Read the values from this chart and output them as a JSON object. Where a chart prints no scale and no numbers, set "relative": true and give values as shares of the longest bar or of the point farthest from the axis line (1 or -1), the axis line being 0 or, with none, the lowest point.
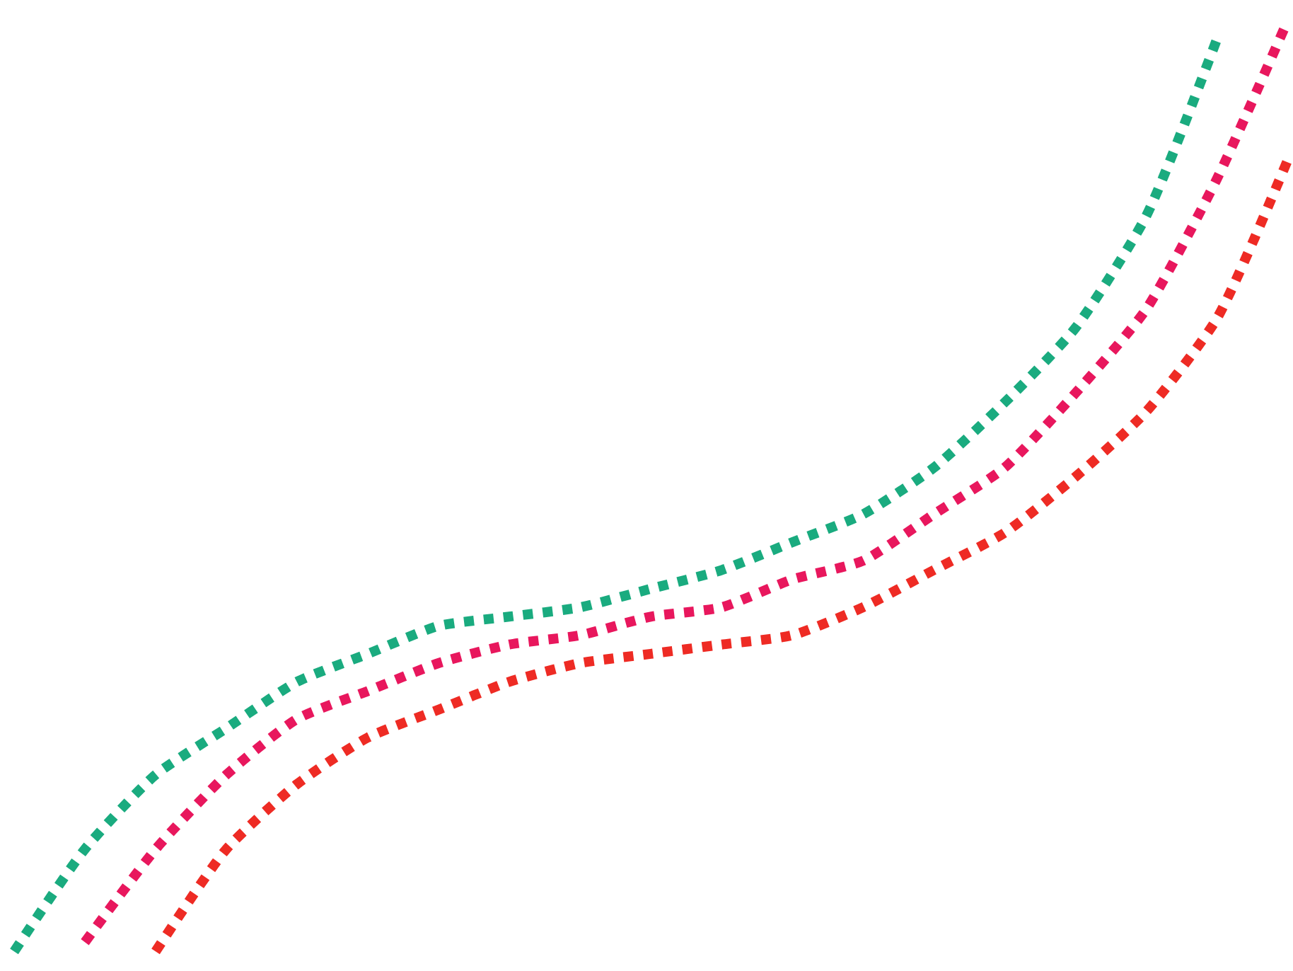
{
  "chart_data": {
    "type": "line",
    "relative": true,
    "line_style": "dotted",
    "categories": [
      null,
      null,
      null,
      null,
      null,
      null,
      null,
      null,
      null,
      null,
      null,
      null,
      null,
      null,
      null,
      null,
      null,
      null,
      null
    ],
    "series": [
      {
        "color": "#1aab7f",
        "values": [
          0,
          0.11,
          0.19,
          0.24,
          0.29,
          0.32,
          0.35,
          0.36,
          0.37,
          0.39,
          0.41,
          0.44,
          0.47,
          0.52,
          0.59,
          0.67,
          0.79,
          0.98,
          null
        ]
      },
      {
        "color": "#e8175d",
        "values": [
          null,
          0.01,
          0.11,
          0.19,
          0.25,
          0.28,
          0.31,
          0.33,
          0.34,
          0.36,
          0.37,
          0.4,
          0.42,
          0.47,
          0.52,
          0.6,
          0.69,
          0.83,
          1
        ]
      },
      {
        "color": "#ee2b24",
        "values": [
          null,
          null,
          0,
          0.11,
          0.18,
          0.23,
          0.26,
          0.29,
          0.31,
          0.32,
          0.33,
          0.34,
          0.37,
          0.41,
          0.45,
          0.51,
          0.58,
          0.68,
          0.85
        ]
      }
    ]
  }
}
